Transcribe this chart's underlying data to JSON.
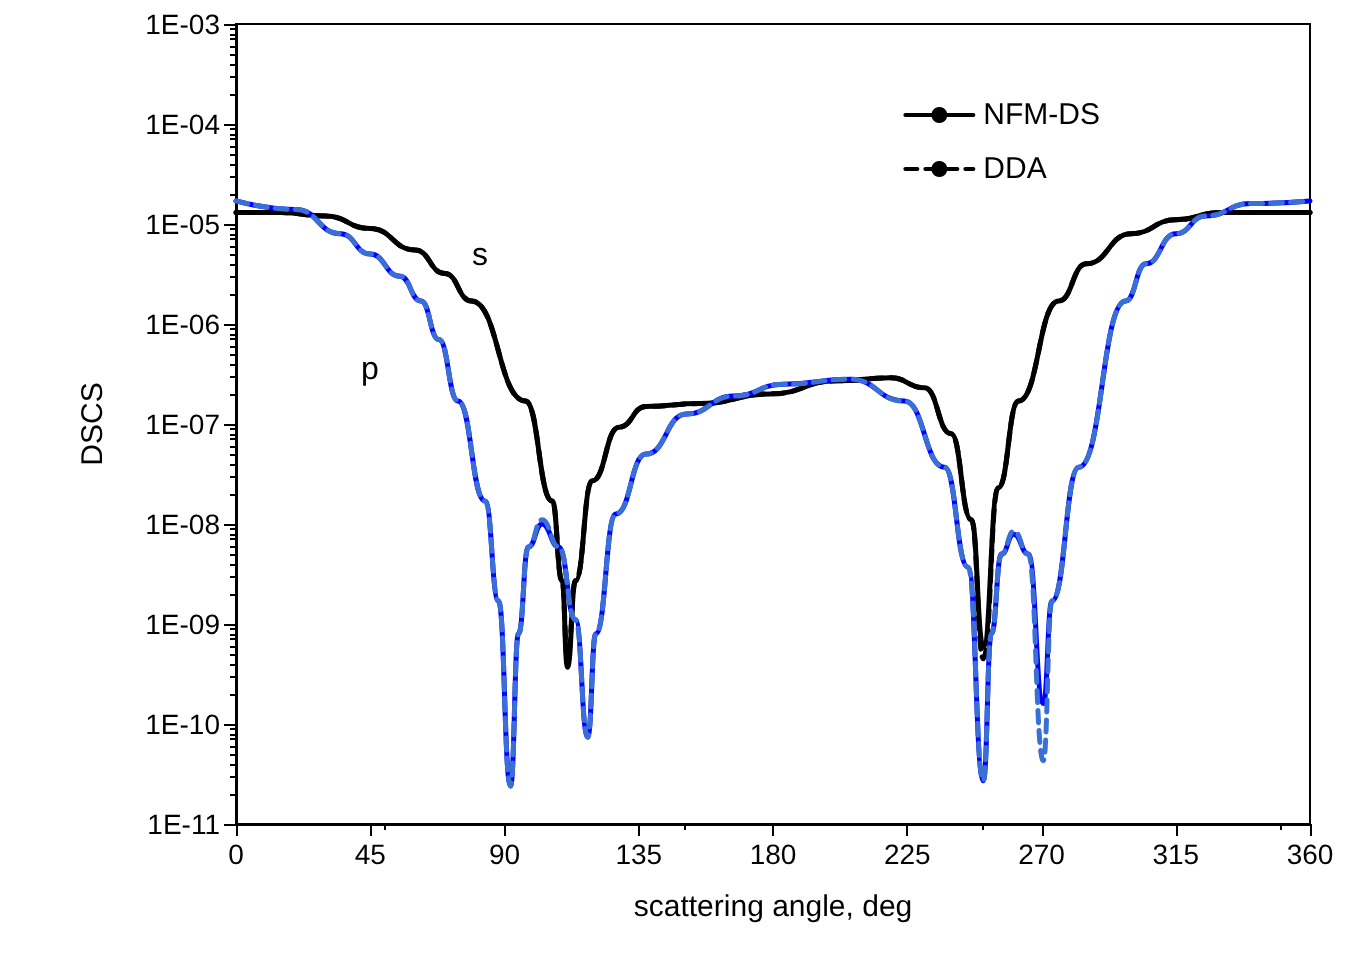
{
  "chart_data": {
    "type": "line",
    "xlabel": "scattering angle, deg",
    "ylabel": "DSCS",
    "log": "y",
    "grid": false,
    "legend": "top right",
    "marker": "none",
    "xlim": [
      0,
      360
    ],
    "xticks": [
      0,
      45,
      90,
      135,
      180,
      225,
      270,
      315,
      360
    ],
    "ylim": [
      1e-11,
      0.001
    ],
    "yticks": [
      {
        "value": 1e-11,
        "label": "1E-11"
      },
      {
        "value": 1e-10,
        "label": "1E-10"
      },
      {
        "value": 1e-09,
        "label": "1E-09"
      },
      {
        "value": 1e-08,
        "label": "1E-08"
      },
      {
        "value": 1e-07,
        "label": "1E-07"
      },
      {
        "value": 1e-06,
        "label": "1E-06"
      },
      {
        "value": 1e-05,
        "label": "1E-05"
      },
      {
        "value": 0.0001,
        "label": "1E-04"
      },
      {
        "value": 0.001,
        "label": "1E-03"
      }
    ],
    "annotations": [
      "s",
      "p"
    ],
    "series": [
      {
        "name": "NFM-DS",
        "color": "#000000",
        "line_style": "solid",
        "x": [
          0,
          15,
          30,
          45,
          60,
          70,
          78.9,
          97,
          106,
          109.3,
          111.1,
          113.8,
          119.4,
          128.4,
          137.4,
          155.4,
          179,
          201.5,
          219.5,
          230.8,
          239.7,
          246.5,
          250.5,
          255.5,
          262.3,
          275.8,
          285,
          300,
          315,
          330,
          345,
          360
        ],
        "values": [
          1.3e-05,
          1.3e-05,
          1.2e-05,
          9e-06,
          5.5e-06,
          3.2e-06,
          1.7e-06,
          1.7e-07,
          1.7e-08,
          2.7e-09,
          3.7e-10,
          2.7e-09,
          2.7e-08,
          9.3e-08,
          1.5e-07,
          1.6e-07,
          2e-07,
          2.7e-07,
          2.9e-07,
          2.3e-07,
          8e-08,
          1.1e-08,
          5.9e-10,
          2.3e-08,
          1.7e-07,
          1.7e-06,
          4e-06,
          8e-06,
          1.1e-05,
          1.3e-05,
          1.3e-05,
          1.3e-05
        ]
      },
      {
        "name": "DDA",
        "color": "#000000",
        "line_style": "dashed",
        "x": [
          0,
          15,
          30,
          45,
          60,
          70,
          78.9,
          97,
          106,
          109.3,
          111.1,
          113.8,
          119.4,
          128.4,
          137.4,
          155.4,
          179,
          201.5,
          219.5,
          230.8,
          239.7,
          246.5,
          250.5,
          255.5,
          262.3,
          275.8,
          285,
          300,
          315,
          330,
          345,
          360
        ],
        "values": [
          1.3e-05,
          1.3e-05,
          1.2e-05,
          9e-06,
          5.5e-06,
          3.2e-06,
          1.7e-06,
          1.7e-07,
          1.7e-08,
          2.7e-09,
          4.5e-10,
          2.7e-09,
          2.7e-08,
          9.3e-08,
          1.5e-07,
          1.6e-07,
          2e-07,
          2.7e-07,
          2.9e-07,
          2.3e-07,
          8e-08,
          1.1e-08,
          4.5e-10,
          2.3e-08,
          1.7e-07,
          1.7e-06,
          4e-06,
          8e-06,
          1.1e-05,
          1.3e-05,
          1.3e-05,
          1.3e-05
        ]
      },
      {
        "color": "#0000ff",
        "line_style": "solid",
        "x": [
          0,
          20,
          35,
          45,
          55,
          62,
          68,
          74.4,
          83.5,
          88,
          92,
          94.7,
          98,
          102.6,
          108.2,
          113.8,
          117.9,
          120.6,
          127.3,
          137.4,
          151,
          166.7,
          183.5,
          206,
          224,
          237.5,
          245.4,
          250.5,
          253.2,
          256.6,
          260.7,
          265.6,
          270.6,
          273.5,
          282.5,
          298.2,
          305,
          315,
          325,
          340,
          360
        ],
        "values": [
          1.7e-05,
          1.4e-05,
          8e-06,
          5e-06,
          3e-06,
          1.7e-06,
          7e-07,
          1.7e-07,
          1.7e-08,
          1.7e-09,
          2.4e-11,
          8e-10,
          5.9e-09,
          1e-08,
          5.9e-09,
          1.1e-09,
          7.4e-11,
          8e-10,
          1.26e-08,
          5e-08,
          1.26e-07,
          1.9e-07,
          2.5e-07,
          2.8e-07,
          1.7e-07,
          3.7e-08,
          3.7e-09,
          2.7e-11,
          8e-10,
          5e-09,
          7.9e-09,
          5e-09,
          1.6e-10,
          1.7e-09,
          3.7e-08,
          1.7e-06,
          4e-06,
          8e-06,
          1.2e-05,
          1.6e-05,
          1.7e-05
        ]
      },
      {
        "color": "#3a6fd8",
        "line_style": "dashed",
        "x": [
          0,
          20,
          35,
          45,
          55,
          62,
          68,
          74.4,
          83.5,
          88,
          92,
          94.7,
          98,
          102.6,
          108.2,
          113.8,
          117.9,
          120.6,
          127.3,
          137.4,
          151,
          166.7,
          183.5,
          206,
          224,
          237.5,
          245.4,
          250.5,
          253.2,
          256.6,
          260.7,
          265.6,
          270.6,
          273.5,
          282.5,
          298.2,
          305,
          315,
          325,
          340,
          360
        ],
        "values": [
          1.7e-05,
          1.4e-05,
          8e-06,
          5e-06,
          3e-06,
          1.7e-06,
          7e-07,
          1.7e-07,
          1.7e-08,
          1.7e-09,
          2.4e-11,
          8e-10,
          5.9e-09,
          1.1e-08,
          5.9e-09,
          1.1e-09,
          7.4e-11,
          8e-10,
          1.26e-08,
          5e-08,
          1.26e-07,
          1.9e-07,
          2.5e-07,
          2.8e-07,
          1.7e-07,
          3.7e-08,
          3.7e-09,
          2.7e-11,
          8e-10,
          5e-09,
          8.5e-09,
          5e-09,
          4.3e-11,
          1.7e-09,
          3.7e-08,
          1.7e-06,
          4e-06,
          8e-06,
          1.2e-05,
          1.6e-05,
          1.7e-05
        ]
      }
    ]
  }
}
